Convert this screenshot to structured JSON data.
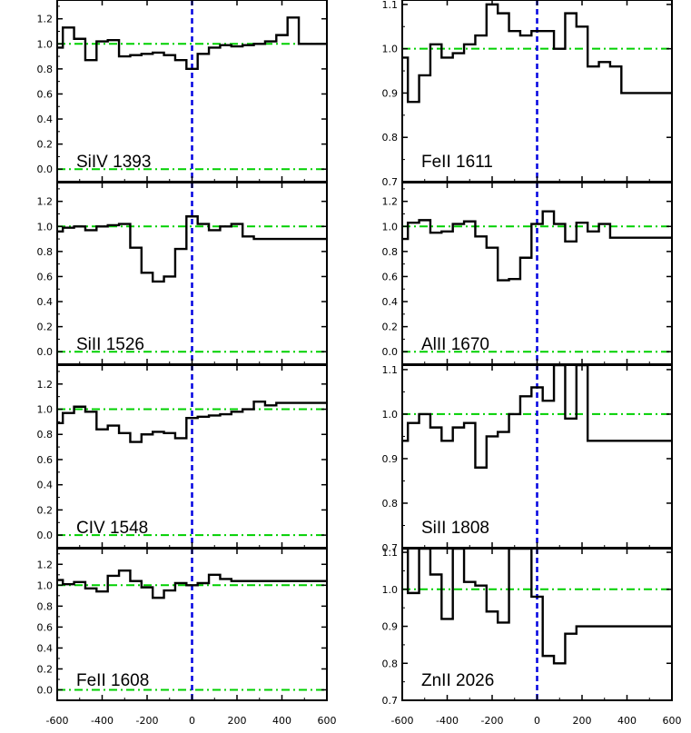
{
  "chart_data": [
    {
      "type": "line",
      "title": "SiIV 1393",
      "x": [
        -600,
        -550,
        -500,
        -450,
        -400,
        -350,
        -300,
        -250,
        -200,
        -150,
        -100,
        -50,
        0,
        50,
        100,
        150,
        200,
        250,
        300,
        350,
        400,
        450,
        500,
        550,
        600
      ],
      "y": [
        0.97,
        1.13,
        1.04,
        0.87,
        1.02,
        1.03,
        0.9,
        0.91,
        0.92,
        0.93,
        0.91,
        0.87,
        0.8,
        0.92,
        0.97,
        0.99,
        0.98,
        0.99,
        1.0,
        1.02,
        1.07,
        1.21,
        1.0,
        1.0,
        1.0
      ],
      "xlim": [
        -600,
        600
      ],
      "ylim": [
        -0.1,
        1.35
      ],
      "yticks": [
        "0.0",
        "0.2",
        "0.4",
        "0.6",
        "0.8",
        "1.0",
        "1.2"
      ],
      "yticks_values": [
        0,
        0.2,
        0.4,
        0.6,
        0.8,
        1.0,
        1.2
      ],
      "reference_line": 1.0,
      "zero_line": 0.0
    },
    {
      "type": "line",
      "title": "FeII 1611",
      "x": [
        -600,
        -550,
        -500,
        -450,
        -400,
        -350,
        -300,
        -250,
        -200,
        -150,
        -100,
        -50,
        0,
        50,
        100,
        150,
        200,
        250,
        300,
        350,
        400,
        450,
        500,
        550,
        600
      ],
      "y": [
        0.98,
        0.88,
        0.94,
        1.01,
        0.98,
        0.99,
        1.01,
        1.03,
        1.1,
        1.08,
        1.04,
        1.03,
        1.04,
        1.04,
        1.0,
        1.08,
        1.05,
        0.96,
        0.97,
        0.96,
        0.9,
        0.9,
        0.9,
        0.9,
        0.9
      ],
      "xlim": [
        -600,
        600
      ],
      "ylim": [
        0.7,
        1.11
      ],
      "yticks": [
        "0.7",
        "0.8",
        "0.9",
        "1.0",
        "1.1"
      ],
      "yticks_values": [
        0.7,
        0.8,
        0.9,
        1.0,
        1.1
      ],
      "reference_line": 1.0
    },
    {
      "type": "line",
      "title": "SiII 1526",
      "x": [
        -600,
        -550,
        -500,
        -450,
        -400,
        -350,
        -300,
        -250,
        -200,
        -150,
        -100,
        -50,
        0,
        50,
        100,
        150,
        200,
        250,
        300,
        350,
        400,
        450,
        500,
        550,
        600
      ],
      "y": [
        0.96,
        0.99,
        1.0,
        0.97,
        1.0,
        1.01,
        1.02,
        0.83,
        0.63,
        0.56,
        0.6,
        0.82,
        1.08,
        1.02,
        0.97,
        1.0,
        1.02,
        0.92,
        0.9,
        0.9,
        0.9,
        0.9,
        0.9,
        0.9,
        0.9
      ],
      "xlim": [
        -600,
        600
      ],
      "ylim": [
        -0.1,
        1.35
      ],
      "yticks": [
        "0.0",
        "0.2",
        "0.4",
        "0.6",
        "0.8",
        "1.0",
        "1.2"
      ],
      "yticks_values": [
        0,
        0.2,
        0.4,
        0.6,
        0.8,
        1.0,
        1.2
      ],
      "reference_line": 1.0,
      "zero_line": 0.0
    },
    {
      "type": "line",
      "title": "AlII 1670",
      "x": [
        -600,
        -550,
        -500,
        -450,
        -400,
        -350,
        -300,
        -250,
        -200,
        -150,
        -100,
        -50,
        0,
        50,
        100,
        150,
        200,
        250,
        300,
        350,
        400,
        450,
        500,
        550,
        600
      ],
      "y": [
        0.9,
        1.03,
        1.05,
        0.95,
        0.96,
        1.02,
        1.04,
        0.92,
        0.83,
        0.57,
        0.58,
        0.75,
        1.02,
        1.12,
        1.02,
        0.88,
        1.03,
        0.96,
        1.02,
        0.91,
        0.91,
        0.91,
        0.91,
        0.91,
        0.91
      ],
      "xlim": [
        -600,
        600
      ],
      "ylim": [
        -0.1,
        1.35
      ],
      "yticks": [
        "0.0",
        "0.2",
        "0.4",
        "0.6",
        "0.8",
        "1.0",
        "1.2"
      ],
      "yticks_values": [
        0,
        0.2,
        0.4,
        0.6,
        0.8,
        1.0,
        1.2
      ],
      "reference_line": 1.0,
      "zero_line": 0.0
    },
    {
      "type": "line",
      "title": "CIV 1548",
      "x": [
        -600,
        -550,
        -500,
        -450,
        -400,
        -350,
        -300,
        -250,
        -200,
        -150,
        -100,
        -50,
        0,
        50,
        100,
        150,
        200,
        250,
        300,
        350,
        400,
        450,
        500,
        550,
        600
      ],
      "y": [
        0.89,
        0.97,
        1.02,
        0.98,
        0.84,
        0.87,
        0.81,
        0.74,
        0.8,
        0.82,
        0.81,
        0.77,
        0.93,
        0.94,
        0.95,
        0.96,
        0.98,
        1.0,
        1.06,
        1.03,
        1.05,
        1.05,
        1.05,
        1.05,
        1.05
      ],
      "xlim": [
        -600,
        600
      ],
      "ylim": [
        -0.1,
        1.35
      ],
      "yticks": [
        "0.0",
        "0.2",
        "0.4",
        "0.6",
        "0.8",
        "1.0",
        "1.2"
      ],
      "yticks_values": [
        0,
        0.2,
        0.4,
        0.6,
        0.8,
        1.0,
        1.2
      ],
      "reference_line": 1.0,
      "zero_line": 0.0
    },
    {
      "type": "line",
      "title": "SiII 1808",
      "x": [
        -600,
        -550,
        -500,
        -450,
        -400,
        -350,
        -300,
        -250,
        -200,
        -150,
        -100,
        -50,
        0,
        50,
        100,
        150,
        200,
        250,
        300,
        350,
        400,
        450,
        500,
        550,
        600
      ],
      "y": [
        0.94,
        0.98,
        1.0,
        0.97,
        0.94,
        0.97,
        0.98,
        0.88,
        0.95,
        0.96,
        1.0,
        1.04,
        1.06,
        1.03,
        1.11,
        0.99,
        1.11,
        0.94,
        0.94,
        0.94,
        0.94,
        0.94,
        0.94,
        0.94,
        0.94
      ],
      "xlim": [
        -600,
        600
      ],
      "ylim": [
        0.7,
        1.11
      ],
      "yticks": [
        "0.7",
        "0.8",
        "0.9",
        "1.0",
        "1.1"
      ],
      "yticks_values": [
        0.7,
        0.8,
        0.9,
        1.0,
        1.1
      ],
      "reference_line": 1.0
    },
    {
      "type": "line",
      "title": "FeII 1608",
      "x": [
        -600,
        -550,
        -500,
        -450,
        -400,
        -350,
        -300,
        -250,
        -200,
        -150,
        -100,
        -50,
        0,
        50,
        100,
        150,
        200,
        250,
        300,
        350,
        400,
        450,
        500,
        550,
        600
      ],
      "y": [
        1.05,
        1.01,
        1.03,
        0.97,
        0.94,
        1.09,
        1.14,
        1.04,
        0.98,
        0.88,
        0.95,
        1.02,
        1.0,
        1.02,
        1.1,
        1.06,
        1.04,
        1.04,
        1.04,
        1.04,
        1.04,
        1.04,
        1.04,
        1.04,
        1.04
      ],
      "xlim": [
        -600,
        600
      ],
      "ylim": [
        -0.1,
        1.35
      ],
      "yticks": [
        "0.0",
        "0.2",
        "0.4",
        "0.6",
        "0.8",
        "1.0",
        "1.2"
      ],
      "yticks_values": [
        0,
        0.2,
        0.4,
        0.6,
        0.8,
        1.0,
        1.2
      ],
      "reference_line": 1.0,
      "zero_line": 0.0
    },
    {
      "type": "line",
      "title": "ZnII 2026",
      "x": [
        -600,
        -550,
        -500,
        -450,
        -400,
        -350,
        -300,
        -250,
        -200,
        -150,
        -100,
        -50,
        0,
        50,
        100,
        150,
        200,
        250,
        300,
        350,
        400,
        450,
        500,
        550,
        600
      ],
      "y": [
        1.11,
        0.99,
        1.11,
        1.04,
        0.92,
        1.11,
        1.02,
        1.01,
        0.94,
        0.91,
        1.11,
        1.11,
        0.98,
        0.82,
        0.8,
        0.88,
        0.9,
        0.9,
        0.9,
        0.9,
        0.9,
        0.9,
        0.9,
        0.9,
        0.9
      ],
      "xlim": [
        -600,
        600
      ],
      "ylim": [
        0.7,
        1.11
      ],
      "yticks": [
        "0.7",
        "0.8",
        "0.9",
        "1.0",
        "1.1"
      ],
      "yticks_values": [
        0.7,
        0.8,
        0.9,
        1.0,
        1.1
      ],
      "reference_line": 1.0
    }
  ],
  "x_tick_labels": [
    "-600",
    "-400",
    "-200",
    "0",
    "200",
    "400",
    "600"
  ],
  "x_tick_values": [
    -600,
    -400,
    -200,
    0,
    200,
    400,
    600
  ],
  "colors": {
    "histogram": "#000000",
    "continuum_line": "#00d000",
    "zero_velocity_line": "#0000e0",
    "axes": "#000000"
  },
  "styles": {
    "continuum_line": "dash-dot",
    "zero_velocity_line": "dashed"
  }
}
